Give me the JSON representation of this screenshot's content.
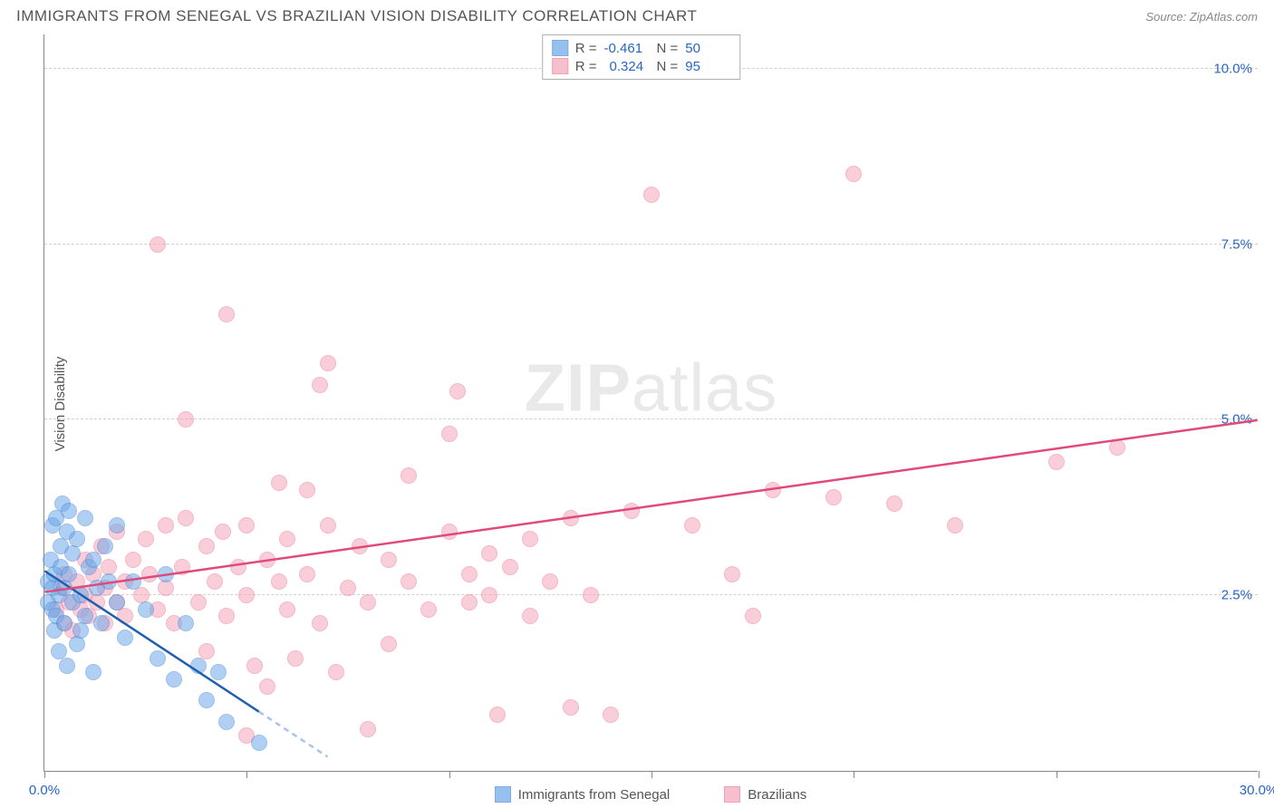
{
  "header": {
    "title": "IMMIGRANTS FROM SENEGAL VS BRAZILIAN VISION DISABILITY CORRELATION CHART",
    "source_label": "Source: ZipAtlas.com"
  },
  "watermark": {
    "zip": "ZIP",
    "atlas": "atlas"
  },
  "chart": {
    "type": "scatter",
    "background_color": "#ffffff",
    "grid_color": "#d0d0d0",
    "axis_color": "#888888",
    "ylabel": "Vision Disability",
    "ylabel_color": "#555555",
    "xlim": [
      0,
      30
    ],
    "ylim": [
      0,
      10.5
    ],
    "x_ticks": [
      0,
      5,
      10,
      15,
      20,
      25,
      30
    ],
    "x_tick_labels": {
      "0": "0.0%",
      "30": "30.0%"
    },
    "y_gridlines": [
      2.5,
      5.0,
      7.5,
      10.0
    ],
    "y_tick_labels": {
      "2.5": "2.5%",
      "5.0": "5.0%",
      "7.5": "7.5%",
      "10.0": "10.0%"
    },
    "tick_label_color": "#2865c4",
    "tick_label_fontsize": 15,
    "marker_radius": 9,
    "marker_fill_opacity": 0.28,
    "marker_stroke_width": 1.5,
    "series": [
      {
        "name": "Immigrants from Senegal",
        "color": "#6aa7e8",
        "stroke": "#4a87d8",
        "line_color": "#1f5fb0",
        "R": "-0.461",
        "N": "50",
        "regression": {
          "x1": 0,
          "y1": 2.85,
          "x2": 7.0,
          "y2": 0.2,
          "dash_after_x": 5.3
        },
        "points": [
          [
            0.1,
            2.4
          ],
          [
            0.1,
            2.7
          ],
          [
            0.15,
            3.0
          ],
          [
            0.2,
            2.3
          ],
          [
            0.2,
            2.6
          ],
          [
            0.2,
            3.5
          ],
          [
            0.25,
            2.0
          ],
          [
            0.25,
            2.8
          ],
          [
            0.3,
            3.6
          ],
          [
            0.3,
            2.2
          ],
          [
            0.35,
            2.5
          ],
          [
            0.35,
            1.7
          ],
          [
            0.4,
            3.2
          ],
          [
            0.4,
            2.9
          ],
          [
            0.45,
            3.8
          ],
          [
            0.5,
            2.1
          ],
          [
            0.5,
            2.6
          ],
          [
            0.55,
            3.4
          ],
          [
            0.55,
            1.5
          ],
          [
            0.6,
            2.8
          ],
          [
            0.6,
            3.7
          ],
          [
            0.7,
            2.4
          ],
          [
            0.7,
            3.1
          ],
          [
            0.8,
            1.8
          ],
          [
            0.8,
            3.3
          ],
          [
            0.9,
            2.5
          ],
          [
            0.9,
            2.0
          ],
          [
            1.0,
            3.6
          ],
          [
            1.0,
            2.2
          ],
          [
            1.1,
            2.9
          ],
          [
            1.2,
            1.4
          ],
          [
            1.2,
            3.0
          ],
          [
            1.3,
            2.6
          ],
          [
            1.4,
            2.1
          ],
          [
            1.5,
            3.2
          ],
          [
            1.6,
            2.7
          ],
          [
            1.8,
            2.4
          ],
          [
            1.8,
            3.5
          ],
          [
            2.0,
            1.9
          ],
          [
            2.2,
            2.7
          ],
          [
            2.5,
            2.3
          ],
          [
            2.8,
            1.6
          ],
          [
            3.0,
            2.8
          ],
          [
            3.2,
            1.3
          ],
          [
            3.5,
            2.1
          ],
          [
            3.8,
            1.5
          ],
          [
            4.0,
            1.0
          ],
          [
            4.3,
            1.4
          ],
          [
            4.5,
            0.7
          ],
          [
            5.3,
            0.4
          ]
        ]
      },
      {
        "name": "Brazilians",
        "color": "#f5a3b8",
        "stroke": "#e87a9a",
        "line_color": "#e04a7a",
        "R": "0.324",
        "N": "95",
        "regression": {
          "x1": 0,
          "y1": 2.55,
          "x2": 30,
          "y2": 5.0
        },
        "points": [
          [
            0.3,
            2.3
          ],
          [
            0.4,
            2.6
          ],
          [
            0.5,
            2.1
          ],
          [
            0.5,
            2.8
          ],
          [
            0.6,
            2.4
          ],
          [
            0.7,
            2.0
          ],
          [
            0.8,
            2.7
          ],
          [
            0.9,
            2.3
          ],
          [
            1.0,
            3.0
          ],
          [
            1.0,
            2.5
          ],
          [
            1.1,
            2.2
          ],
          [
            1.2,
            2.8
          ],
          [
            1.3,
            2.4
          ],
          [
            1.4,
            3.2
          ],
          [
            1.5,
            2.6
          ],
          [
            1.5,
            2.1
          ],
          [
            1.6,
            2.9
          ],
          [
            1.8,
            2.4
          ],
          [
            1.8,
            3.4
          ],
          [
            2.0,
            2.7
          ],
          [
            2.0,
            2.2
          ],
          [
            2.2,
            3.0
          ],
          [
            2.4,
            2.5
          ],
          [
            2.5,
            3.3
          ],
          [
            2.6,
            2.8
          ],
          [
            2.8,
            2.3
          ],
          [
            2.8,
            7.5
          ],
          [
            3.0,
            3.5
          ],
          [
            3.0,
            2.6
          ],
          [
            3.2,
            2.1
          ],
          [
            3.4,
            2.9
          ],
          [
            3.5,
            3.6
          ],
          [
            3.5,
            5.0
          ],
          [
            3.8,
            2.4
          ],
          [
            4.0,
            3.2
          ],
          [
            4.0,
            1.7
          ],
          [
            4.2,
            2.7
          ],
          [
            4.4,
            3.4
          ],
          [
            4.5,
            6.5
          ],
          [
            4.5,
            2.2
          ],
          [
            4.8,
            2.9
          ],
          [
            5.0,
            3.5
          ],
          [
            5.0,
            2.5
          ],
          [
            5.2,
            1.5
          ],
          [
            5.5,
            3.0
          ],
          [
            5.5,
            1.2
          ],
          [
            5.8,
            2.7
          ],
          [
            5.8,
            4.1
          ],
          [
            6.0,
            2.3
          ],
          [
            6.0,
            3.3
          ],
          [
            6.2,
            1.6
          ],
          [
            6.5,
            2.8
          ],
          [
            6.5,
            4.0
          ],
          [
            6.8,
            2.1
          ],
          [
            7.0,
            3.5
          ],
          [
            7.0,
            5.8
          ],
          [
            7.2,
            1.4
          ],
          [
            7.5,
            2.6
          ],
          [
            7.8,
            3.2
          ],
          [
            8.0,
            2.4
          ],
          [
            8.0,
            0.6
          ],
          [
            8.5,
            3.0
          ],
          [
            8.5,
            1.8
          ],
          [
            9.0,
            2.7
          ],
          [
            9.0,
            4.2
          ],
          [
            9.5,
            2.3
          ],
          [
            10.0,
            3.4
          ],
          [
            10.0,
            4.8
          ],
          [
            10.2,
            5.4
          ],
          [
            10.5,
            2.8
          ],
          [
            10.5,
            2.4
          ],
          [
            11.0,
            3.1
          ],
          [
            11.0,
            2.5
          ],
          [
            11.2,
            0.8
          ],
          [
            11.5,
            2.9
          ],
          [
            12.0,
            3.3
          ],
          [
            12.0,
            2.2
          ],
          [
            12.5,
            2.7
          ],
          [
            13.0,
            0.9
          ],
          [
            13.0,
            3.6
          ],
          [
            13.5,
            2.5
          ],
          [
            14.0,
            0.8
          ],
          [
            14.5,
            3.7
          ],
          [
            15.0,
            8.2
          ],
          [
            16.0,
            3.5
          ],
          [
            17.0,
            2.8
          ],
          [
            17.5,
            2.2
          ],
          [
            18.0,
            4.0
          ],
          [
            19.5,
            3.9
          ],
          [
            20.0,
            8.5
          ],
          [
            21.0,
            3.8
          ],
          [
            22.5,
            3.5
          ],
          [
            25.0,
            4.4
          ],
          [
            26.5,
            4.6
          ],
          [
            5.0,
            0.5
          ],
          [
            6.8,
            5.5
          ]
        ]
      }
    ]
  },
  "stat_box": {
    "r_label": "R =",
    "n_label": "N ="
  },
  "bottom_legend": {
    "series1": "Immigrants from Senegal",
    "series2": "Brazilians"
  }
}
